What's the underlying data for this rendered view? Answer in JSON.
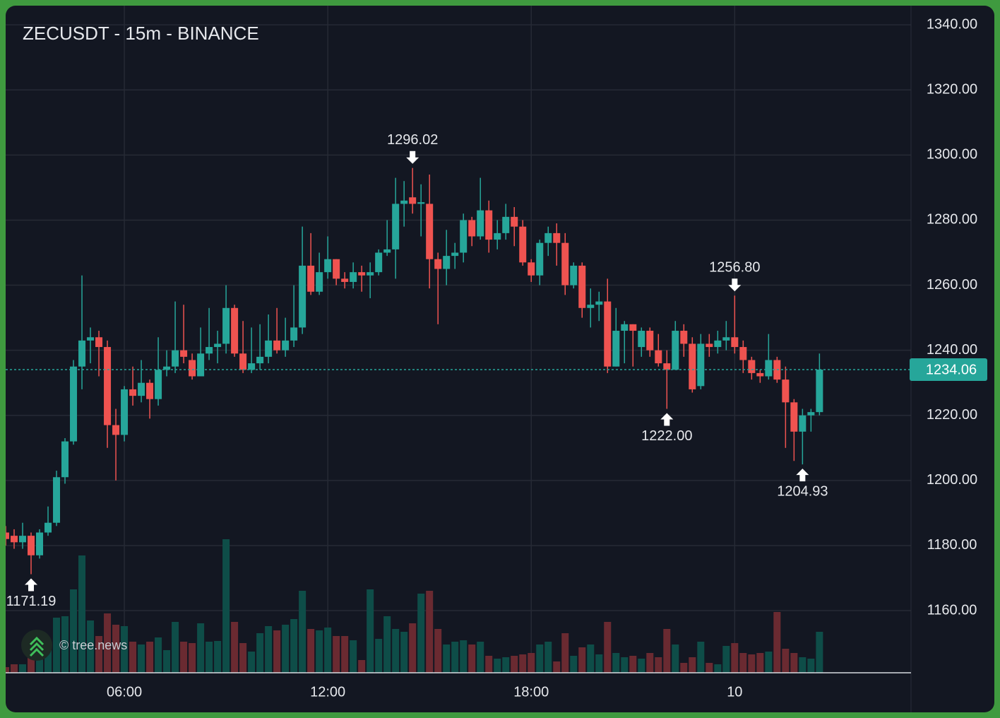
{
  "chart_data": {
    "type": "candlestick",
    "title": "ZECUSDT - 15m - BINANCE",
    "watermark": "© tree.news",
    "x": [
      2.5,
      2.75,
      3,
      3.25,
      3.5,
      3.75,
      4,
      4.25,
      4.5,
      4.75,
      5,
      5.25,
      5.5,
      5.75,
      6,
      6.25,
      6.5,
      6.75,
      7,
      7.25,
      7.5,
      7.75,
      8,
      8.25,
      8.5,
      8.75,
      9,
      9.25,
      9.5,
      9.75,
      10,
      10.25,
      10.5,
      10.75,
      11,
      11.25,
      11.5,
      11.75,
      12,
      12.25,
      12.5,
      12.75,
      13,
      13.25,
      13.5,
      13.75,
      14,
      14.25,
      14.5,
      14.75,
      15,
      15.25,
      15.5,
      15.75,
      16,
      16.25,
      16.5,
      16.75,
      17,
      17.25,
      17.5,
      17.75,
      18,
      18.25,
      18.5,
      18.75,
      19,
      19.25,
      19.5,
      19.75,
      20,
      20.25,
      20.5,
      20.75,
      21,
      21.25,
      21.5,
      21.75,
      22,
      22.25,
      22.5,
      22.75,
      23,
      23.25,
      23.5,
      23.75,
      24,
      24.25,
      24.5,
      24.75,
      25,
      25.25,
      25.5,
      25.75,
      26,
      26.25,
      26.5
    ],
    "open": [
      1184,
      1183,
      1181,
      1183,
      1177,
      1184,
      1187,
      1201,
      1212,
      1235,
      1243,
      1244,
      1241,
      1217,
      1214,
      1228,
      1226,
      1230,
      1225,
      1234,
      1235,
      1240,
      1237,
      1232,
      1239,
      1241,
      1242,
      1253,
      1239,
      1234,
      1236,
      1238,
      1243,
      1240,
      1243,
      1247,
      1266,
      1258,
      1264,
      1268,
      1262,
      1261,
      1264,
      1263,
      1264,
      1270,
      1271,
      1285,
      1287,
      1285,
      1285,
      1268,
      1265,
      1269,
      1270,
      1280,
      1275,
      1283,
      1274,
      1276,
      1281,
      1278,
      1267,
      1263,
      1273,
      1276,
      1273,
      1260,
      1266,
      1253,
      1254,
      1255,
      1235,
      1246,
      1248,
      1241,
      1246,
      1240,
      1236,
      1234,
      1246,
      1242,
      1229,
      1242,
      1241,
      1243,
      1244,
      1241,
      1237,
      1233,
      1232,
      1237,
      1231,
      1224,
      1215,
      1220,
      1221
    ],
    "high": [
      1186,
      1185,
      1187,
      1184,
      1185,
      1192,
      1203,
      1213,
      1237,
      1263,
      1247,
      1246,
      1243,
      1222,
      1229,
      1235,
      1237,
      1231,
      1244,
      1240,
      1255,
      1254,
      1239,
      1247,
      1253,
      1246,
      1260,
      1254,
      1249,
      1247,
      1248,
      1251,
      1253,
      1250,
      1260,
      1278,
      1276,
      1270,
      1275,
      1268,
      1264,
      1267,
      1266,
      1267,
      1271,
      1280,
      1293,
      1292,
      1296.02,
      1291,
      1294,
      1270,
      1277,
      1273,
      1282,
      1281,
      1293,
      1286,
      1280,
      1285,
      1284,
      1280,
      1268,
      1274,
      1278,
      1279,
      1276,
      1267,
      1267,
      1259,
      1258,
      1262,
      1253,
      1249,
      1248,
      1247,
      1247,
      1245,
      1240,
      1249,
      1248,
      1244,
      1245,
      1245,
      1246,
      1249,
      1256.8,
      1243,
      1238,
      1234,
      1245,
      1238,
      1235,
      1225,
      1222,
      1222,
      1239
    ],
    "low": [
      1180,
      1179,
      1179,
      1171.19,
      1176,
      1183,
      1186,
      1199,
      1211,
      1228,
      1236,
      1232,
      1210,
      1200,
      1212,
      1223,
      1224,
      1219,
      1223,
      1232,
      1233,
      1236,
      1231,
      1232,
      1237,
      1236,
      1239,
      1238,
      1233,
      1233,
      1234,
      1236,
      1239,
      1238,
      1241,
      1245,
      1257,
      1257,
      1262,
      1260,
      1259,
      1259,
      1258,
      1256,
      1263,
      1269,
      1262,
      1278,
      1282,
      1275,
      1259,
      1248,
      1260,
      1265,
      1267,
      1272,
      1274,
      1270,
      1271,
      1274,
      1272,
      1266,
      1261,
      1260,
      1269,
      1266,
      1257,
      1259,
      1250,
      1247,
      1249,
      1233,
      1235,
      1236,
      1235,
      1238,
      1238,
      1235,
      1222.0,
      1234,
      1238,
      1227,
      1228,
      1238,
      1239,
      1240,
      1239,
      1233,
      1231,
      1230,
      1231,
      1230,
      1210,
      1206,
      1204.93,
      1215,
      1220
    ],
    "close": [
      1182,
      1181,
      1183,
      1177,
      1184,
      1187,
      1201,
      1212,
      1235,
      1243,
      1244,
      1241,
      1217,
      1214,
      1228,
      1226,
      1230,
      1225,
      1234,
      1235,
      1240,
      1238,
      1232,
      1239,
      1241,
      1242,
      1253,
      1239,
      1234,
      1236,
      1238,
      1243,
      1240,
      1243,
      1247,
      1266,
      1258,
      1264,
      1268,
      1262,
      1261,
      1264,
      1263,
      1264,
      1270,
      1271,
      1285,
      1286,
      1285,
      1285.5,
      1268,
      1265,
      1269,
      1270,
      1280,
      1275,
      1283,
      1274,
      1276,
      1281,
      1278,
      1267,
      1263,
      1273,
      1276,
      1273,
      1260,
      1266,
      1253,
      1254,
      1255,
      1235,
      1246,
      1248,
      1246,
      1246,
      1240,
      1236,
      1234,
      1246,
      1242,
      1228,
      1242,
      1241,
      1243,
      1244,
      1241,
      1237,
      1233,
      1232,
      1237,
      1231,
      1224,
      1215,
      1220,
      1221,
      1234.06
    ],
    "volume": [
      8,
      12,
      12,
      22,
      26,
      40,
      78,
      80,
      118,
      166,
      74,
      52,
      84,
      68,
      66,
      44,
      40,
      44,
      50,
      32,
      72,
      44,
      42,
      70,
      44,
      45,
      189,
      72,
      42,
      30,
      56,
      66,
      60,
      68,
      76,
      116,
      62,
      60,
      64,
      52,
      52,
      46,
      18,
      118,
      48,
      80,
      62,
      58,
      70,
      112,
      116,
      62,
      40,
      44,
      46,
      40,
      44,
      24,
      20,
      22,
      24,
      26,
      28,
      40,
      44,
      16,
      56,
      24,
      36,
      40,
      26,
      72,
      28,
      22,
      24,
      20,
      28,
      22,
      62,
      40,
      14,
      22,
      44,
      14,
      12,
      38,
      42,
      28,
      26,
      28,
      30,
      86,
      34,
      28,
      22,
      20,
      58
    ],
    "up_color": "#26a69a",
    "down_color": "#ef5350",
    "volume_up_color": "#0e4d48",
    "volume_down_color": "#6a2a31",
    "xlim": [
      2.5,
      29.2
    ],
    "xticks": [
      {
        "value": 6,
        "label": "06:00"
      },
      {
        "value": 12,
        "label": "12:00"
      },
      {
        "value": 18,
        "label": "18:00"
      },
      {
        "value": 24,
        "label": "10"
      }
    ],
    "ylim": [
      1140.9,
      1345.9
    ],
    "yticks": [
      {
        "value": 1160,
        "label": "1160.00"
      },
      {
        "value": 1180,
        "label": "1180.00"
      },
      {
        "value": 1200,
        "label": "1200.00"
      },
      {
        "value": 1220,
        "label": "1220.00"
      },
      {
        "value": 1240,
        "label": "1240.00"
      },
      {
        "value": 1260,
        "label": "1260.00"
      },
      {
        "value": 1280,
        "label": "1280.00"
      },
      {
        "value": 1300,
        "label": "1300.00"
      },
      {
        "value": 1320,
        "label": "1320.00"
      },
      {
        "value": 1340,
        "label": "1340.00"
      }
    ],
    "grid": true,
    "last_price": 1234.06,
    "annotations": [
      {
        "x": 3.25,
        "value": 1171.19,
        "label": "1171.19",
        "side": "below"
      },
      {
        "x": 14.5,
        "value": 1296.02,
        "label": "1296.02",
        "side": "above"
      },
      {
        "x": 22,
        "value": 1222.0,
        "label": "1222.00",
        "side": "below"
      },
      {
        "x": 24,
        "value": 1256.8,
        "label": "1256.80",
        "side": "above"
      },
      {
        "x": 26,
        "value": 1204.93,
        "label": "1204.93",
        "side": "below"
      }
    ]
  }
}
